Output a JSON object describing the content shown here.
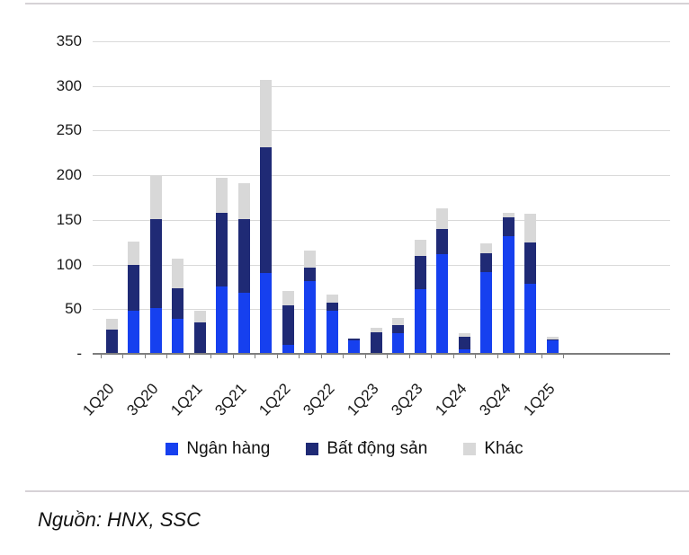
{
  "chart_data": {
    "type": "bar",
    "stacked": true,
    "title": "",
    "xlabel": "",
    "ylabel": "",
    "ylim": [
      0,
      350
    ],
    "grid": "horizontal",
    "legend_position": "bottom",
    "y_ticks": [
      {
        "value": 350,
        "label": "350"
      },
      {
        "value": 300,
        "label": "300"
      },
      {
        "value": 250,
        "label": "250"
      },
      {
        "value": 200,
        "label": "200"
      },
      {
        "value": 150,
        "label": "150"
      },
      {
        "value": 100,
        "label": "100"
      },
      {
        "value": 50,
        "label": "50"
      },
      {
        "value": 0,
        "label": "-"
      }
    ],
    "categories": [
      "1Q20",
      "2Q20",
      "3Q20",
      "4Q20",
      "1Q21",
      "2Q21",
      "3Q21",
      "4Q21",
      "1Q22",
      "2Q22",
      "3Q22",
      "4Q22",
      "1Q23",
      "2Q23",
      "3Q23",
      "4Q23",
      "1Q24",
      "2Q24",
      "3Q24",
      "4Q24",
      "1Q25"
    ],
    "x_tick_labels": [
      "1Q20",
      "3Q20",
      "1Q21",
      "3Q21",
      "1Q22",
      "3Q22",
      "1Q23",
      "3Q23",
      "1Q24",
      "3Q24",
      "1Q25"
    ],
    "label_every": 2,
    "series": [
      {
        "name": "Ngân hàng",
        "color": "#1640EF",
        "values": [
          0,
          48,
          51,
          39,
          0,
          75,
          68,
          91,
          10,
          81,
          48,
          15,
          0,
          23,
          72,
          112,
          5,
          92,
          132,
          78,
          15
        ]
      },
      {
        "name": "Bất động sản",
        "color": "#1F2A75",
        "values": [
          27,
          52,
          100,
          34,
          35,
          83,
          83,
          140,
          44,
          16,
          9,
          2,
          24,
          9,
          38,
          28,
          14,
          21,
          21,
          47,
          1
        ]
      },
      {
        "name": "Khác",
        "color": "#D8D8D8",
        "values": [
          12,
          26,
          48,
          34,
          13,
          39,
          40,
          76,
          16,
          19,
          9,
          0,
          5,
          8,
          18,
          23,
          4,
          11,
          5,
          32,
          3
        ]
      }
    ]
  },
  "footer": {
    "source_note": "Nguồn: HNX, SSC"
  }
}
